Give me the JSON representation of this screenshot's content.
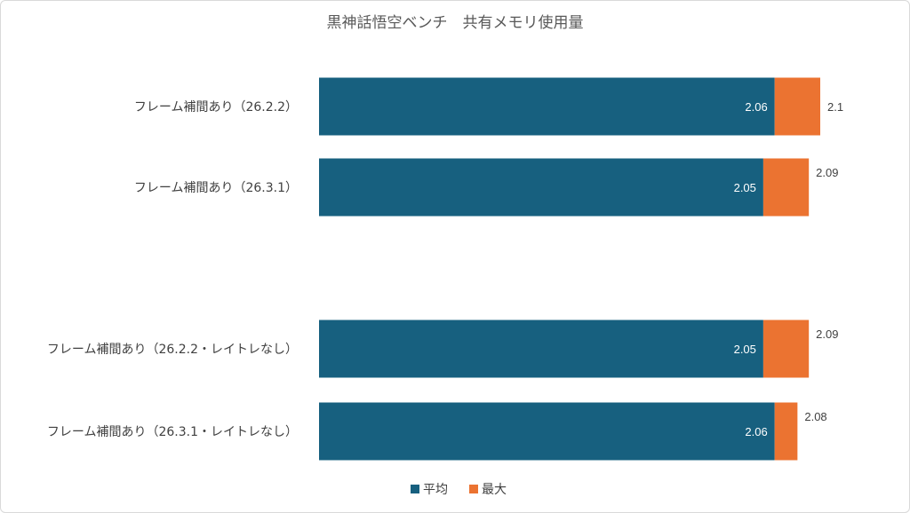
{
  "chart_data": {
    "type": "bar",
    "orientation": "horizontal",
    "title": "黒神話悟空ベンチ　共有メモリ使用量",
    "categories": [
      "フレーム補間あり（26.2.2）",
      "フレーム補間あり（26.3.1）",
      "",
      "フレーム補間あり（26.2.2・レイトレなし）",
      "フレーム補間あり（26.3.1・レイトレなし）"
    ],
    "series": [
      {
        "name": "平均",
        "values": [
          2.06,
          2.05,
          null,
          2.05,
          2.06
        ],
        "color": "#17607f"
      },
      {
        "name": "最大",
        "values": [
          2.1,
          2.09,
          null,
          2.09,
          2.08
        ],
        "color": "#eb7331"
      }
    ],
    "xlim": [
      1.66,
      2.1
    ],
    "legend_placement": "bottom",
    "grid": false
  }
}
